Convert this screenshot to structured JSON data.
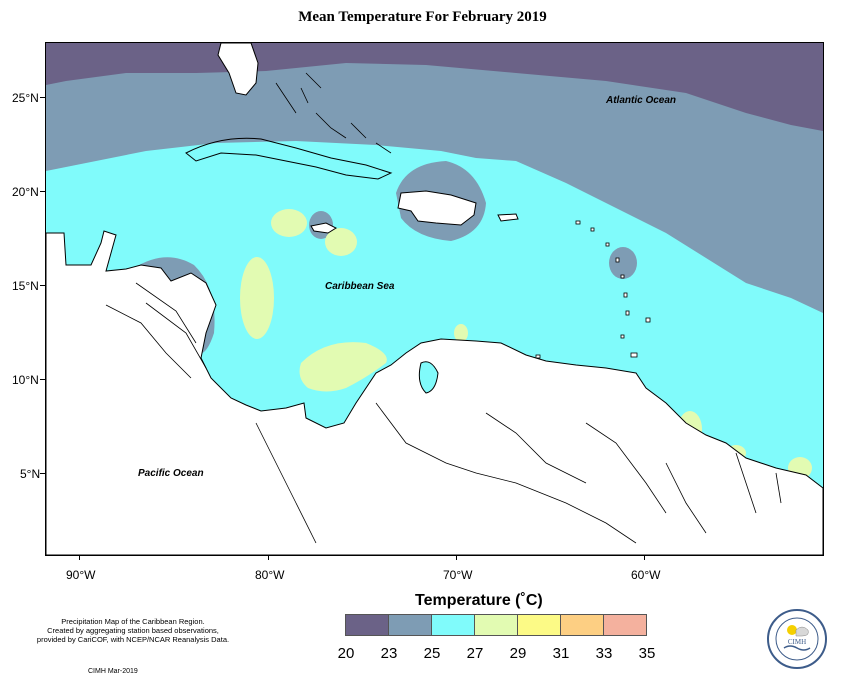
{
  "title": "Mean Temperature For February 2019",
  "map": {
    "lat_labels": [
      "25°N",
      "20°N",
      "15°N",
      "10°N",
      "5°N"
    ],
    "lon_labels": [
      "90°W",
      "80°W",
      "70°W",
      "60°W"
    ],
    "ocean_labels": {
      "atlantic": "Atlantic Ocean",
      "caribbean": "Caribbean Sea",
      "pacific": "Pacific Ocean"
    }
  },
  "legend": {
    "title": "Temperature (˚C)",
    "colors": [
      "#6b6287",
      "#7e9cb4",
      "#80fbfb",
      "#e2fbb2",
      "#fcfa86",
      "#fdcf83",
      "#f4b19e"
    ],
    "ticks": [
      "20",
      "23",
      "25",
      "27",
      "29",
      "31",
      "33",
      "35"
    ]
  },
  "note": {
    "line1": "Precipitation Map of the Caribbean Region.",
    "line2": "Created by aggregating station based observations,",
    "line3": "provided by CariCOF, with NCEP/NCAR Reanalysis Data.",
    "credit": "CIMH Mar-2019"
  },
  "logo": {
    "icon": "cimh-logo-icon",
    "text": "CIMH"
  }
}
